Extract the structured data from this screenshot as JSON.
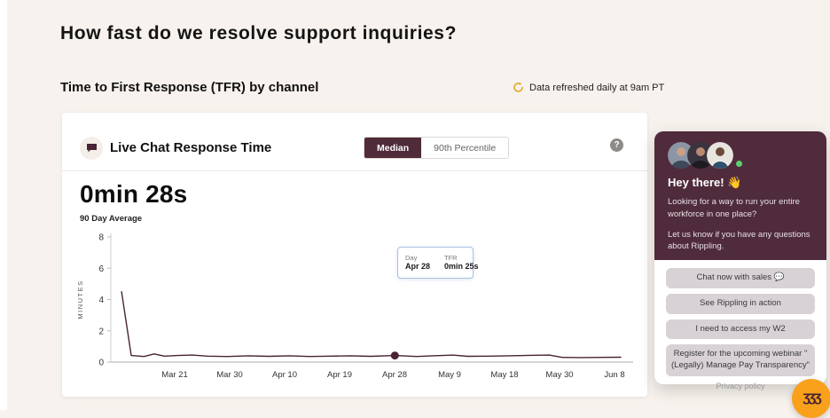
{
  "page": {
    "title": "How fast do we resolve support inquiries?",
    "section_title": "Time to First Response (TFR) by channel",
    "refresh_note": "Data refreshed daily at 9am PT"
  },
  "colors": {
    "accent_maroon": "#502b3a",
    "chat_header": "#4f2b3c",
    "brand_orange": "#f9a11b",
    "refresh_icon": "#e5a62e",
    "tooltip_border": "#a9c2e4",
    "page_background": "#f7f2ed"
  },
  "card": {
    "title": "Live Chat Response Time",
    "toggle": {
      "selected": "Median",
      "options": [
        "Median",
        "90th Percentile"
      ]
    },
    "help_icon": "?",
    "stat_value": "0min 28s",
    "stat_label": "90 Day Average"
  },
  "tooltip": {
    "day_label": "Day",
    "day_value": "Apr 28",
    "tfr_label": "TFR",
    "tfr_value": "0min 25s"
  },
  "chart_data": {
    "type": "line",
    "title": "Live Chat Response Time (Median)",
    "ylabel": "MINUTES",
    "ylim": [
      0,
      8
    ],
    "yticks": [
      0,
      2,
      4,
      6,
      8
    ],
    "grid": false,
    "legend": "none",
    "categories": [
      "Mar 21",
      "Mar 30",
      "Apr 10",
      "Apr 19",
      "Apr 28",
      "May 9",
      "May 18",
      "May 30",
      "Jun 8"
    ],
    "line_color": "#4a2334",
    "points": [
      {
        "x_pct": 2.1,
        "minutes": 4.5
      },
      {
        "x_pct": 4.0,
        "minutes": 0.42
      },
      {
        "x_pct": 6.5,
        "minutes": 0.36
      },
      {
        "x_pct": 8.5,
        "minutes": 0.52
      },
      {
        "x_pct": 10.5,
        "minutes": 0.38
      },
      {
        "x_pct": 13.0,
        "minutes": 0.42
      },
      {
        "x_pct": 16.0,
        "minutes": 0.45
      },
      {
        "x_pct": 19.0,
        "minutes": 0.38
      },
      {
        "x_pct": 23.0,
        "minutes": 0.36
      },
      {
        "x_pct": 27.0,
        "minutes": 0.4
      },
      {
        "x_pct": 31.0,
        "minutes": 0.37
      },
      {
        "x_pct": 35.0,
        "minutes": 0.4
      },
      {
        "x_pct": 39.0,
        "minutes": 0.36
      },
      {
        "x_pct": 43.0,
        "minutes": 0.38
      },
      {
        "x_pct": 47.0,
        "minutes": 0.4
      },
      {
        "x_pct": 51.0,
        "minutes": 0.37
      },
      {
        "x_pct": 55.7,
        "minutes": 0.42
      },
      {
        "x_pct": 60.0,
        "minutes": 0.36
      },
      {
        "x_pct": 63.0,
        "minutes": 0.4
      },
      {
        "x_pct": 67.0,
        "minutes": 0.45
      },
      {
        "x_pct": 70.0,
        "minutes": 0.37
      },
      {
        "x_pct": 74.0,
        "minutes": 0.38
      },
      {
        "x_pct": 78.0,
        "minutes": 0.4
      },
      {
        "x_pct": 82.0,
        "minutes": 0.43
      },
      {
        "x_pct": 86.0,
        "minutes": 0.45
      },
      {
        "x_pct": 88.5,
        "minutes": 0.3
      },
      {
        "x_pct": 92.0,
        "minutes": 0.29
      },
      {
        "x_pct": 96.0,
        "minutes": 0.3
      },
      {
        "x_pct": 100.0,
        "minutes": 0.31
      }
    ],
    "highlight_point": {
      "x_pct": 55.7,
      "minutes": 0.42,
      "category": "Apr 28",
      "value": "0min 25s"
    }
  },
  "chat_widget": {
    "greeting": "Hey there! 👋",
    "messages": [
      "Looking for a way to run your entire workforce in one place?",
      "Let us know if you have any questions about Rippling."
    ],
    "buttons": [
      "Chat now with sales 💬",
      "See Rippling in action",
      "I need to access my W2",
      "Register for the upcoming webinar \"(Legally) Manage Pay Transparency\""
    ],
    "privacy_link": "Privacy policy"
  },
  "fab": {
    "logo_glyph": "ʒʒʒ"
  }
}
